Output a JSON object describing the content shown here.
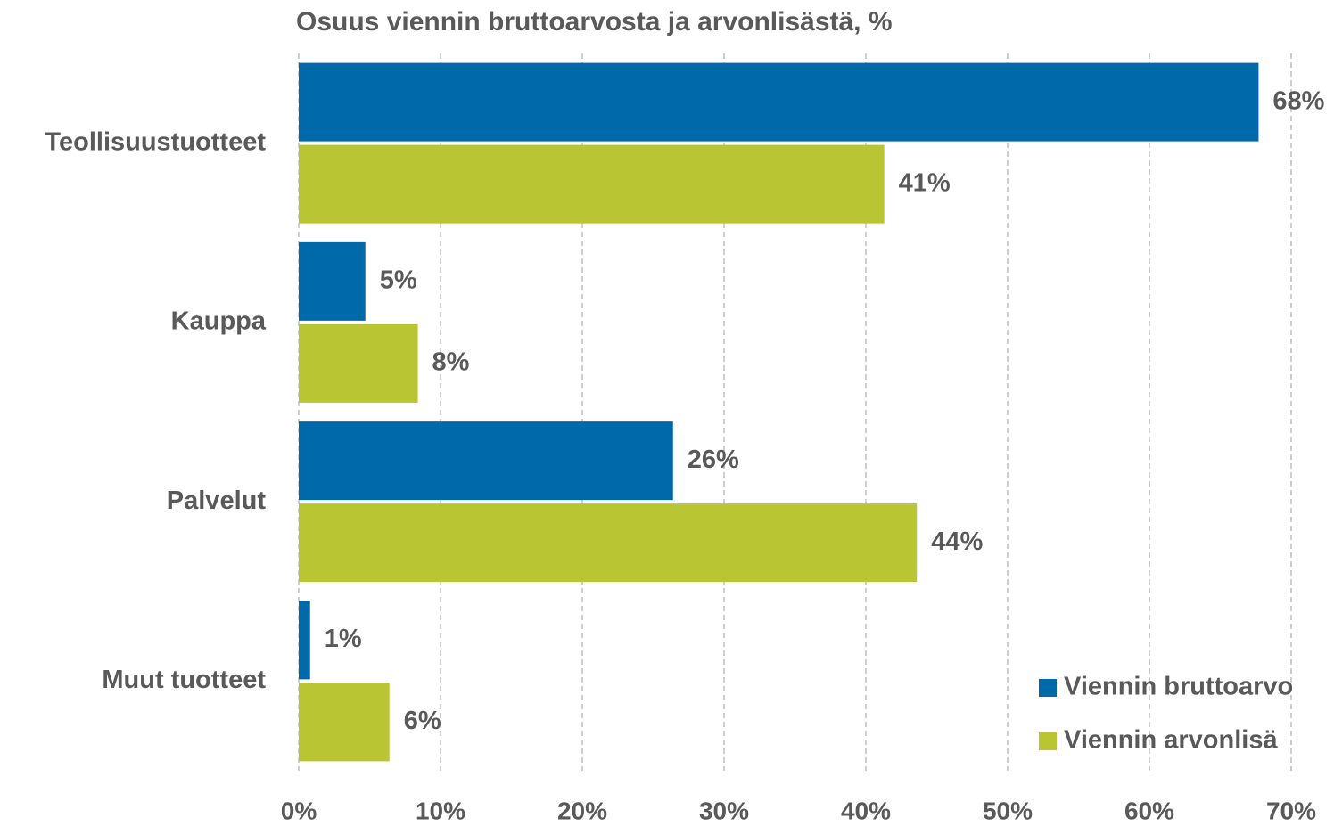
{
  "chart_data": {
    "type": "bar",
    "orientation": "horizontal",
    "title": "Osuus viennin bruttoarvosta ja arvonlisästä, %",
    "categories": [
      "Teollisuustuotteet",
      "Kauppa",
      "Palvelut",
      "Muut tuotteet"
    ],
    "series": [
      {
        "name": "Viennin bruttoarvo",
        "color": "#0069aa",
        "values": [
          67.7,
          4.7,
          26.4,
          0.8
        ],
        "value_labels": [
          "68%",
          "5%",
          "26%",
          "1%"
        ]
      },
      {
        "name": "Viennin arvonlisä",
        "color": "#b9c532",
        "values": [
          41.3,
          8.4,
          43.6,
          6.4
        ],
        "value_labels": [
          "41%",
          "8%",
          "44%",
          "6%"
        ]
      }
    ],
    "xlim": [
      0,
      70
    ],
    "xticks": [
      {
        "value": 0,
        "label": "0%"
      },
      {
        "value": 10,
        "label": "10%"
      },
      {
        "value": 20,
        "label": "20%"
      },
      {
        "value": 30,
        "label": "30%"
      },
      {
        "value": 40,
        "label": "40%"
      },
      {
        "value": 50,
        "label": "50%"
      },
      {
        "value": 60,
        "label": "60%"
      },
      {
        "value": 70,
        "label": "70%"
      }
    ],
    "grid": true,
    "legend": "lower right"
  }
}
